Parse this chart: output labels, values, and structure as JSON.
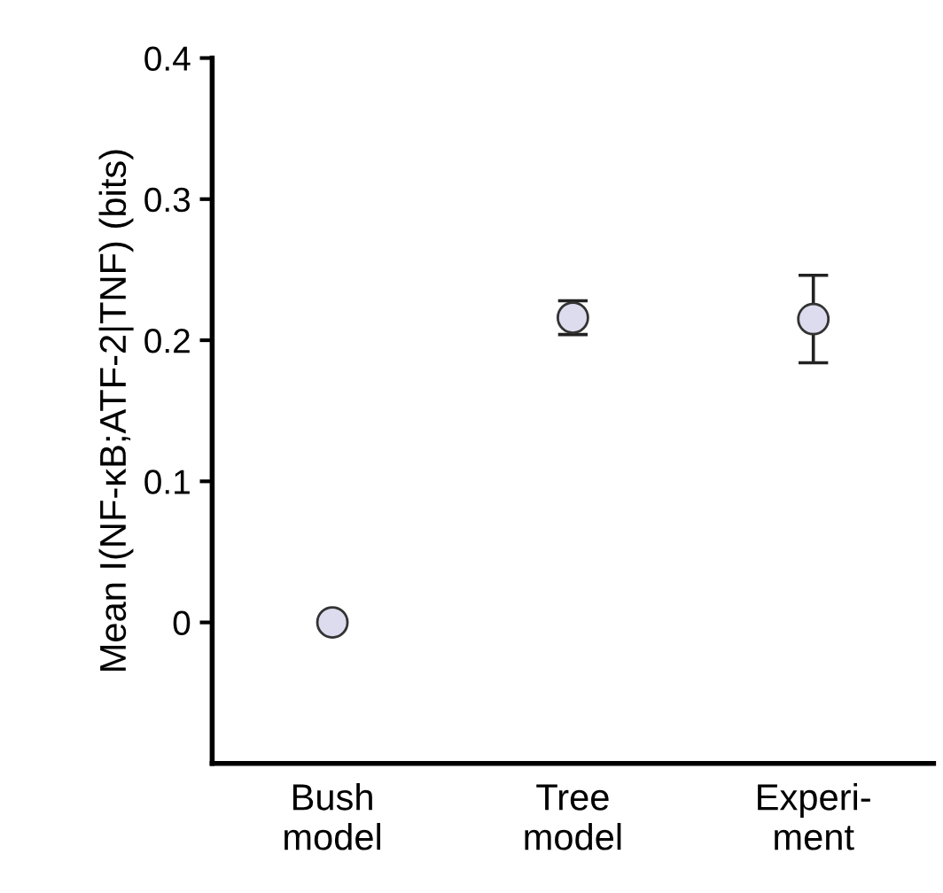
{
  "chart_data": {
    "type": "scatter",
    "ylabel": "Mean I(NF-κB;ATF-2|TNF) (bits)",
    "categories": [
      "Bush\nmodel",
      "Tree\nmodel",
      "Experi-\nment"
    ],
    "values": [
      0,
      0.216,
      0.215
    ],
    "errors": [
      null,
      0.012,
      0.031
    ],
    "color": "#dcdcee",
    "marker": "circle",
    "ylim": [
      -0.1,
      0.4
    ],
    "yticks": [
      {
        "value": 0,
        "label": "0"
      },
      0.1,
      0.2,
      0.3,
      0.4
    ],
    "grid": false,
    "legend": false
  }
}
